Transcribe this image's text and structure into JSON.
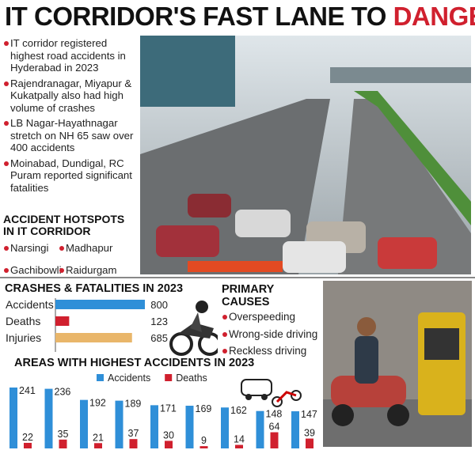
{
  "header": {
    "title": "IT CORRIDOR'S FAST LANE TO",
    "title_highlight": "DANGER"
  },
  "bullets": [
    "IT corridor registered highest road accidents in Hyderabad in 2023",
    "Rajendranagar, Miyapur & Kukatpally also had high volume of crashes",
    "LB Nagar-Hayathnagar stretch on NH 65 saw over 400 accidents",
    "Moinabad, Dundigal, RC Puram reported significant fatalities"
  ],
  "hotspots": {
    "title": "ACCIDENT HOTSPOTS IN IT CORRIDOR",
    "items": [
      "Narsingi",
      "Madhapur",
      "Gachibowli",
      "Raidurgam"
    ]
  },
  "causes": {
    "title": "PRIMARY CAUSES",
    "items": [
      "Overspeeding",
      "Wrong-side driving",
      "Reckless driving"
    ]
  },
  "chart_data": [
    {
      "type": "bar",
      "orientation": "horizontal",
      "title": "CRASHES & FATALITIES IN 2023",
      "categories": [
        "Accidents",
        "Deaths",
        "Injuries"
      ],
      "values": [
        800,
        123,
        685
      ],
      "colors": [
        "#2f8fd8",
        "#d0202e",
        "#e9b66a"
      ]
    },
    {
      "type": "bar",
      "orientation": "vertical",
      "title": "AREAS WITH HIGHEST ACCIDENTS IN 2023",
      "series": [
        {
          "name": "Accidents",
          "color": "#2f8fd8",
          "values": [
            241,
            236,
            192,
            189,
            171,
            169,
            162,
            148,
            147
          ]
        },
        {
          "name": "Deaths",
          "color": "#d0202e",
          "values": [
            22,
            35,
            21,
            37,
            30,
            9,
            14,
            64,
            39
          ]
        }
      ]
    }
  ]
}
